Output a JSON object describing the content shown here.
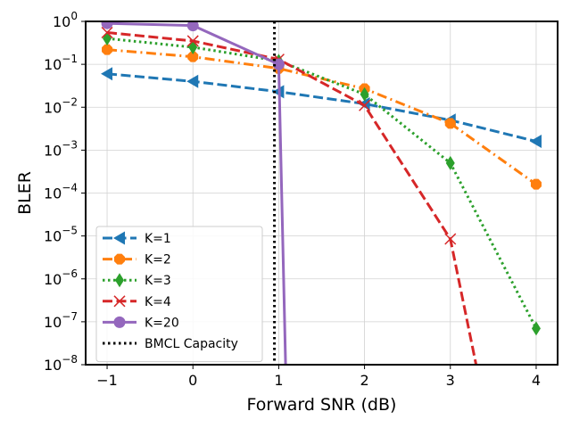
{
  "chart_data": {
    "type": "line",
    "title": "",
    "xlabel": "Forward SNR (dB)",
    "ylabel": "BLER",
    "xscale": "linear",
    "yscale": "log",
    "xlim": [
      -1.25,
      4.25
    ],
    "ylim": [
      1e-08,
      1
    ],
    "xticks": [
      {
        "value": -1,
        "label": "−1"
      },
      {
        "value": 0,
        "label": "0"
      },
      {
        "value": 1,
        "label": "1"
      },
      {
        "value": 2,
        "label": "2"
      },
      {
        "value": 3,
        "label": "3"
      },
      {
        "value": 4,
        "label": "4"
      }
    ],
    "yticks": [
      {
        "value": 1,
        "base": "10",
        "exp": "0"
      },
      {
        "value": 0.1,
        "base": "10",
        "exp": "−1"
      },
      {
        "value": 0.01,
        "base": "10",
        "exp": "−2"
      },
      {
        "value": 0.001,
        "base": "10",
        "exp": "−3"
      },
      {
        "value": 0.0001,
        "base": "10",
        "exp": "−4"
      },
      {
        "value": 1e-05,
        "base": "10",
        "exp": "−5"
      },
      {
        "value": 1e-06,
        "base": "10",
        "exp": "−6"
      },
      {
        "value": 1e-07,
        "base": "10",
        "exp": "−7"
      },
      {
        "value": 1e-08,
        "base": "10",
        "exp": "−8"
      }
    ],
    "grid": true,
    "legend_position": "lower-left",
    "series": [
      {
        "name": "K=1",
        "color": "#1f77b4",
        "dash": "dashed",
        "marker": "triangle-left",
        "x": [
          -1,
          0,
          1,
          2,
          3,
          4
        ],
        "y": [
          0.06,
          0.04,
          0.023,
          0.012,
          0.005,
          0.0016
        ]
      },
      {
        "name": "K=2",
        "color": "#ff7f0e",
        "dash": "dashdot",
        "marker": "octagon",
        "x": [
          -1,
          0,
          1,
          2,
          3,
          4
        ],
        "y": [
          0.22,
          0.15,
          0.08,
          0.027,
          0.0042,
          0.00016
        ]
      },
      {
        "name": "K=3",
        "color": "#2ca02c",
        "dash": "dotted",
        "marker": "thin-diamond",
        "x": [
          -1,
          0,
          1,
          2,
          3,
          4
        ],
        "y": [
          0.4,
          0.25,
          0.12,
          0.02,
          0.0005,
          7e-08
        ]
      },
      {
        "name": "K=4",
        "color": "#d62728",
        "dash": "dashed",
        "marker": "x",
        "x": [
          -1,
          0,
          1,
          2,
          3,
          3.3
        ],
        "y": [
          0.55,
          0.35,
          0.13,
          0.011,
          8.5e-06,
          1e-08
        ]
      },
      {
        "name": "K=20",
        "color": "#9467bd",
        "dash": "solid",
        "marker": "circle",
        "x": [
          -1,
          0,
          1,
          1.08
        ],
        "y": [
          0.9,
          0.8,
          0.1,
          1e-08
        ]
      }
    ],
    "vlines": [
      {
        "name": "BMCL Capacity",
        "x": 0.95,
        "color": "#000000",
        "dash": "dotted"
      }
    ]
  }
}
